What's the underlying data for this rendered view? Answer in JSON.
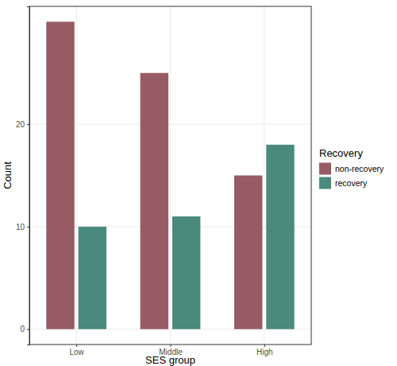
{
  "chart_data": {
    "type": "bar",
    "x_label": "SES group",
    "y_label": "Count",
    "legend_title": "Recovery",
    "categories": [
      "Low",
      "Middle",
      "High"
    ],
    "series": [
      {
        "name": "non-recovery",
        "color": "#975c63",
        "values": [
          30,
          25,
          15
        ]
      },
      {
        "name": "recovery",
        "color": "#4a8a7c",
        "values": [
          10,
          11,
          18
        ]
      }
    ],
    "ylim": [
      -1.5,
      31.5
    ],
    "yticks": [
      0,
      10,
      20
    ],
    "grid": true,
    "legend": "right"
  }
}
